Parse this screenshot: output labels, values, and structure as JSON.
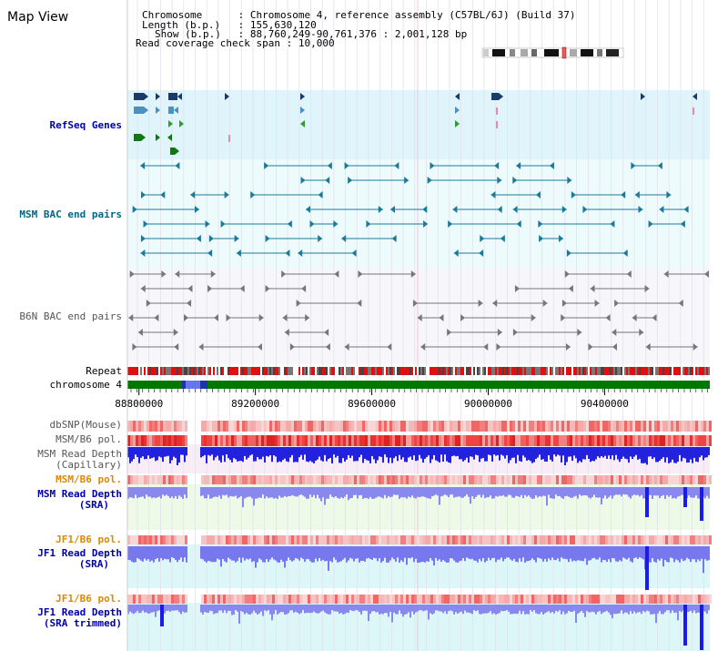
{
  "header": {
    "title": "Map View",
    "info": [
      {
        "key": "Chromosome",
        "value": "Chromosome 4, reference assembly (C57BL/6J) (Build 37)"
      },
      {
        "key": "Length (b.p.)",
        "value": "155,630,120"
      },
      {
        "key": "Show (b.p.)",
        "value": "88,760,249-90,761,376 : 2,001,128 bp"
      },
      {
        "key": "Read coverage check span",
        "value": "10,000"
      }
    ]
  },
  "tracks": {
    "refseq": {
      "label": "RefSeq Genes"
    },
    "msm_bac": {
      "label": "MSM BAC end pairs"
    },
    "b6n_bac": {
      "label": "B6N BAC end pairs"
    },
    "repeat": {
      "label": "Repeat"
    },
    "chromosome": {
      "label": "chromosome 4"
    },
    "dbsnp": {
      "label": "dbSNP(Mouse)"
    },
    "msm_b6_pol_1": {
      "label": "MSM/B6 pol."
    },
    "msm_depth_cap": {
      "label1": "MSM Read Depth",
      "label2": "(Capillary)"
    },
    "msm_b6_pol_2": {
      "label": "MSM/B6 pol."
    },
    "msm_depth_sra": {
      "label1": "MSM Read Depth",
      "label2": "(SRA)"
    },
    "jf1_b6_pol_1": {
      "label": "JF1/B6 pol."
    },
    "jf1_depth_sra": {
      "label1": "JF1 Read Depth",
      "label2": "(SRA)"
    },
    "jf1_b6_pol_2": {
      "label": "JF1/B6 pol."
    },
    "jf1_depth_trim": {
      "label1": "JF1 Read Depth",
      "label2": "(SRA trimmed)"
    }
  },
  "axis": {
    "start": 88760249,
    "end": 90761376,
    "ticks": [
      "88800000",
      "89200000",
      "89600000",
      "90000000",
      "90400000"
    ]
  },
  "colors": {
    "label_blue": "#0000aa",
    "label_teal": "#006688",
    "label_gray": "#555555",
    "label_orange": "#dd8800",
    "refseq_bg": "#dff4fb",
    "msm_bg": "#eefbfd",
    "b6n_bg": "#f6f6fb",
    "depth_bg": "#ddf6f8",
    "chromosome_green": "#007700",
    "depth_blue": "#1a1aee",
    "depth_light": "#7777ee"
  }
}
